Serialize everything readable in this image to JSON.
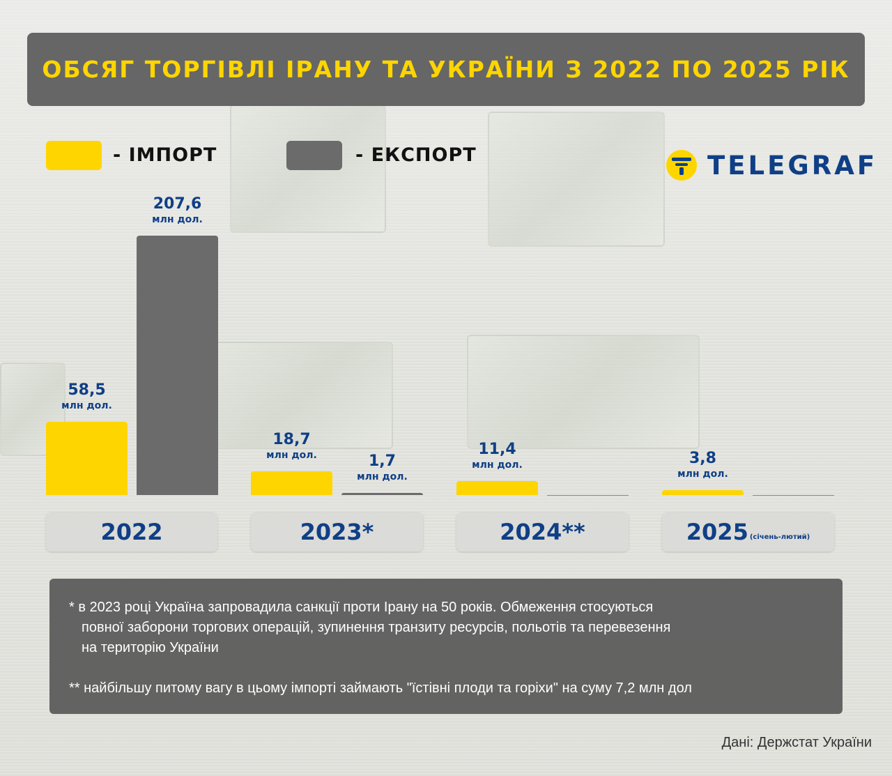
{
  "title": "ОБСЯГ ТОРГІВЛІ ІРАНУ ТА УКРАЇНИ З 2022 ПО 2025 РІК",
  "legend": {
    "import_label": "- ІМПОРТ",
    "export_label": "- ЕКСПОРТ",
    "import_color": "#FFD500",
    "export_color": "#6b6b6b"
  },
  "logo": {
    "text": "TELEGRAF",
    "icon": "telegraf-logo-icon"
  },
  "chart_data": {
    "type": "bar",
    "categories": [
      "2022",
      "2023*",
      "2024**",
      "2025"
    ],
    "category_suffix": [
      "",
      "",
      "",
      "(січень-лютий)"
    ],
    "series": [
      {
        "name": "ІМПОРТ",
        "values": [
          58.5,
          18.7,
          11.4,
          3.8
        ],
        "labels": [
          "58,5",
          "18,7",
          "11,4",
          "3,8"
        ]
      },
      {
        "name": "ЕКСПОРТ",
        "values": [
          207.6,
          1.7,
          null,
          null
        ],
        "labels": [
          "207,6",
          "1,7",
          "",
          ""
        ]
      }
    ],
    "unit": "млн дол.",
    "ylim": [
      0,
      207.6
    ],
    "grid": false
  },
  "notes": {
    "line1": "* в 2023 році Україна запровадила санкції проти Ірану на 50 років. Обмеження стосуються",
    "line2": "повної заборони торгових операцій, зупинення транзиту ресурсів, польотів та перевезення",
    "line3": "на територію України",
    "line4": "** найбільшу питому вагу в цьому імпорті займають \"їстівні плоди та горіхи\" на суму 7,2 млн дол"
  },
  "source": "Дані: Держстат України"
}
